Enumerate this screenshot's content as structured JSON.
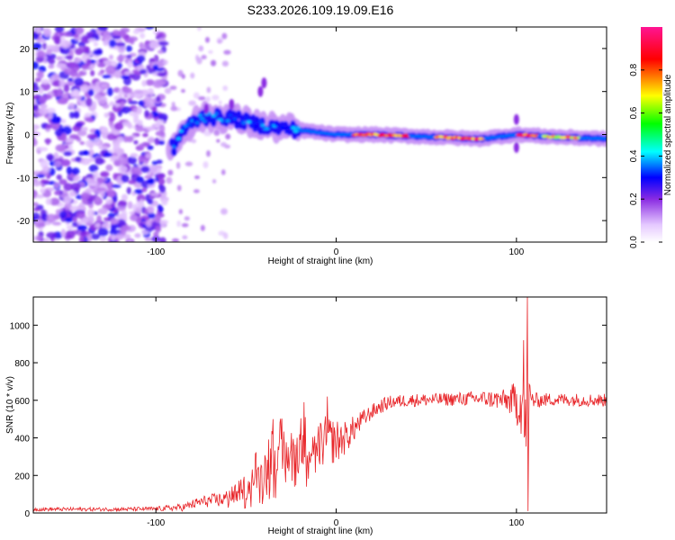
{
  "title": "S233.2026.109.19.09.E16",
  "chart_data": [
    {
      "type": "heatmap",
      "title": "S233.2026.109.19.09.E16",
      "xlabel": "Height of straight line (km)",
      "ylabel": "Frequency (Hz)",
      "xlim": [
        -168,
        150
      ],
      "ylim": [
        -25,
        25
      ],
      "xticks": [
        -100,
        0,
        100
      ],
      "yticks": [
        -20,
        -10,
        0,
        10,
        20
      ],
      "xtick_labels": [
        "-100",
        "0",
        "100"
      ],
      "ytick_labels": [
        "-20",
        "-10",
        "0",
        "10",
        "20"
      ],
      "colorbar": {
        "label": "Normalized spectral amplitude",
        "range": [
          0,
          1
        ],
        "ticks": [
          "0.0",
          "0.2",
          "0.4",
          "0.6",
          "0.8"
        ],
        "tick_values": [
          0.0,
          0.2,
          0.4,
          0.6,
          0.8
        ],
        "colors": [
          "#ffffff",
          "#e5c9ff",
          "#8a2be2",
          "#0000ff",
          "#00ffff",
          "#00ff00",
          "#ffff00",
          "#ff0000",
          "#ff1493"
        ]
      },
      "ridge": {
        "description_points": [
          {
            "x": -90,
            "freq": -3
          },
          {
            "x": -85,
            "freq": 1
          },
          {
            "x": -75,
            "freq": 4
          },
          {
            "x": -60,
            "freq": 4
          },
          {
            "x": -40,
            "freq": 2
          },
          {
            "x": -20,
            "freq": 1
          },
          {
            "x": 0,
            "freq": 0
          },
          {
            "x": 20,
            "freq": 0
          },
          {
            "x": 50,
            "freq": -0.5
          },
          {
            "x": 80,
            "freq": -1
          },
          {
            "x": 100,
            "freq": 0
          },
          {
            "x": 120,
            "freq": -0.5
          },
          {
            "x": 150,
            "freq": -1
          }
        ],
        "peak_amplitude_regions": [
          {
            "x_start": 10,
            "x_end": 40,
            "amplitude": 0.9
          },
          {
            "x_start": 55,
            "x_end": 82,
            "amplitude": 0.9
          },
          {
            "x_start": 100,
            "x_end": 112,
            "amplitude": 0.95
          },
          {
            "x_start": 115,
            "x_end": 135,
            "amplitude": 0.8
          }
        ],
        "noise_region_x": [
          -168,
          -95
        ]
      }
    },
    {
      "type": "line",
      "xlabel": "Height of straight line (km)",
      "ylabel": "SNR (10 * v/v)",
      "xlim": [
        -168,
        150
      ],
      "ylim": [
        0,
        1150
      ],
      "xticks": [
        -100,
        0,
        100
      ],
      "yticks": [
        0,
        200,
        400,
        600,
        800,
        1000
      ],
      "xtick_labels": [
        "-100",
        "0",
        "100"
      ],
      "ytick_labels": [
        "0",
        "200",
        "400",
        "600",
        "800",
        "1000"
      ],
      "series": [
        {
          "name": "SNR",
          "color": "#e8262a",
          "x": [
            -168,
            -120,
            -100,
            -85,
            -75,
            -65,
            -55,
            -50,
            -45,
            -40,
            -35,
            -30,
            -25,
            -20,
            -15,
            -10,
            -5,
            0,
            5,
            10,
            15,
            20,
            25,
            30,
            40,
            60,
            80,
            95,
            100,
            103,
            105,
            106,
            107,
            108,
            110,
            120,
            150
          ],
          "mean": [
            20,
            20,
            22,
            30,
            60,
            70,
            90,
            120,
            180,
            230,
            280,
            300,
            310,
            320,
            340,
            360,
            390,
            380,
            400,
            450,
            500,
            540,
            570,
            590,
            600,
            605,
            610,
            600,
            590,
            600,
            400,
            620,
            560,
            600,
            600,
            605,
            600
          ],
          "spread": [
            10,
            10,
            12,
            20,
            30,
            40,
            50,
            70,
            110,
            130,
            150,
            160,
            170,
            150,
            140,
            140,
            130,
            120,
            90,
            70,
            50,
            40,
            40,
            35,
            35,
            35,
            40,
            60,
            120,
            200,
            250,
            380,
            200,
            80,
            40,
            35,
            35
          ],
          "spikes": [
            {
              "x": 106,
              "y": 1150
            },
            {
              "x": 106.5,
              "y": 10
            },
            {
              "x": 104,
              "y": 920
            },
            {
              "x": -5,
              "y": 620
            },
            {
              "x": -18,
              "y": 590
            },
            {
              "x": -35,
              "y": 500
            }
          ]
        }
      ]
    }
  ]
}
